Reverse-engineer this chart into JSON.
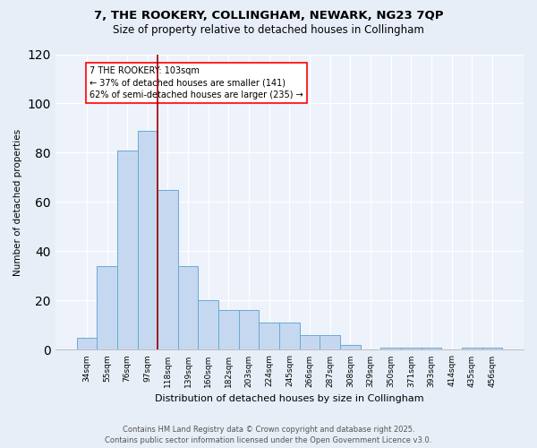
{
  "title1": "7, THE ROOKERY, COLLINGHAM, NEWARK, NG23 7QP",
  "title2": "Size of property relative to detached houses in Collingham",
  "xlabel": "Distribution of detached houses by size in Collingham",
  "ylabel": "Number of detached properties",
  "categories": [
    "34sqm",
    "55sqm",
    "76sqm",
    "97sqm",
    "118sqm",
    "139sqm",
    "160sqm",
    "182sqm",
    "203sqm",
    "224sqm",
    "245sqm",
    "266sqm",
    "287sqm",
    "308sqm",
    "329sqm",
    "350sqm",
    "371sqm",
    "393sqm",
    "414sqm",
    "435sqm",
    "456sqm"
  ],
  "values": [
    5,
    34,
    81,
    89,
    65,
    34,
    20,
    16,
    16,
    11,
    11,
    6,
    6,
    2,
    0,
    1,
    1,
    1,
    0,
    1,
    1
  ],
  "bar_color": "#c5d8f0",
  "bar_edge_color": "#6aaad4",
  "vline_color": "#990000",
  "annotation_text": "7 THE ROOKERY: 103sqm\n← 37% of detached houses are smaller (141)\n62% of semi-detached houses are larger (235) →",
  "footer": "Contains HM Land Registry data © Crown copyright and database right 2025.\nContains public sector information licensed under the Open Government Licence v3.0.",
  "background_color": "#e8eef8",
  "plot_bg_color": "#edf2fb",
  "ylim": [
    0,
    120
  ],
  "yticks": [
    0,
    20,
    40,
    60,
    80,
    100,
    120
  ]
}
